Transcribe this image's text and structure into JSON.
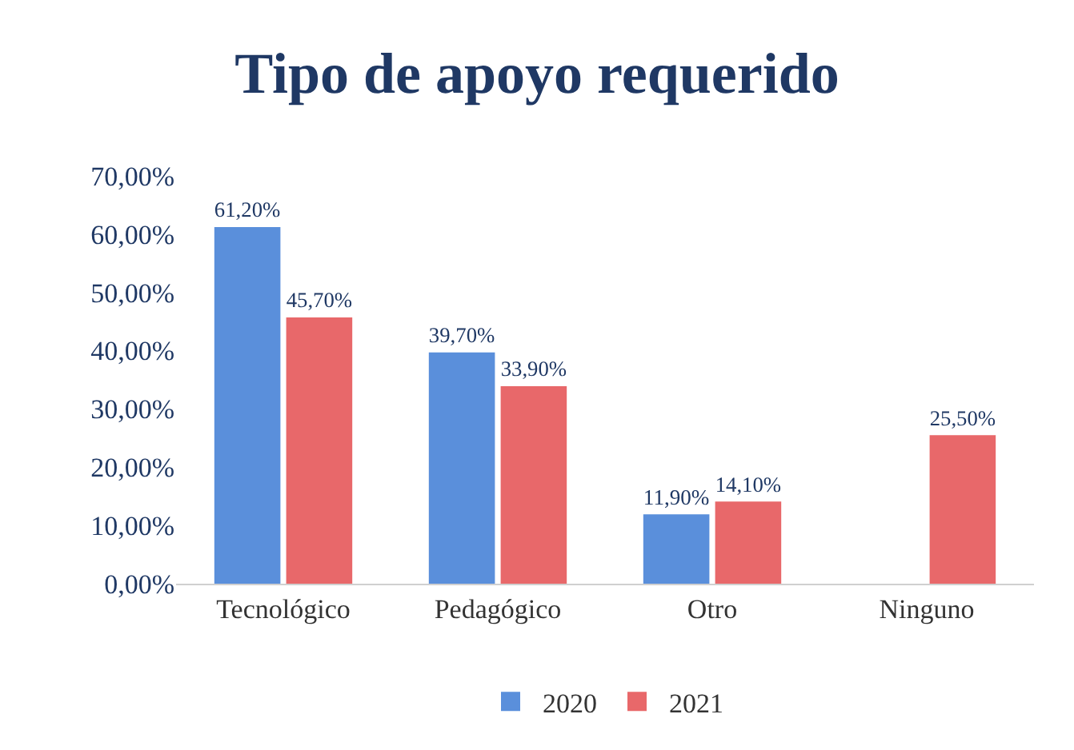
{
  "chart_data": {
    "type": "bar",
    "title": "Tipo de apoyo requerido",
    "categories": [
      "Tecnológico",
      "Pedagógico",
      "Otro",
      "Ninguno"
    ],
    "series": [
      {
        "name": "2020",
        "color": "#5a8fdb",
        "values": [
          61.2,
          39.7,
          11.9,
          null
        ],
        "value_labels": [
          "61,20%",
          "39,70%",
          "11,90%",
          null
        ]
      },
      {
        "name": "2021",
        "color": "#e8686a",
        "values": [
          45.7,
          33.9,
          14.1,
          25.5
        ],
        "value_labels": [
          "45,70%",
          "33,90%",
          "14,10%",
          "25,50%"
        ]
      }
    ],
    "ylim": [
      0,
      70
    ],
    "yticks": [
      {
        "value": 0,
        "label": "0,00%"
      },
      {
        "value": 10,
        "label": "10,00%"
      },
      {
        "value": 20,
        "label": "20,00%"
      },
      {
        "value": 30,
        "label": "30,00%"
      },
      {
        "value": 40,
        "label": "40,00%"
      },
      {
        "value": 50,
        "label": "50,00%"
      },
      {
        "value": 60,
        "label": "60,00%"
      },
      {
        "value": 70,
        "label": "70,00%"
      }
    ],
    "grid": false,
    "legend": "bottom"
  }
}
